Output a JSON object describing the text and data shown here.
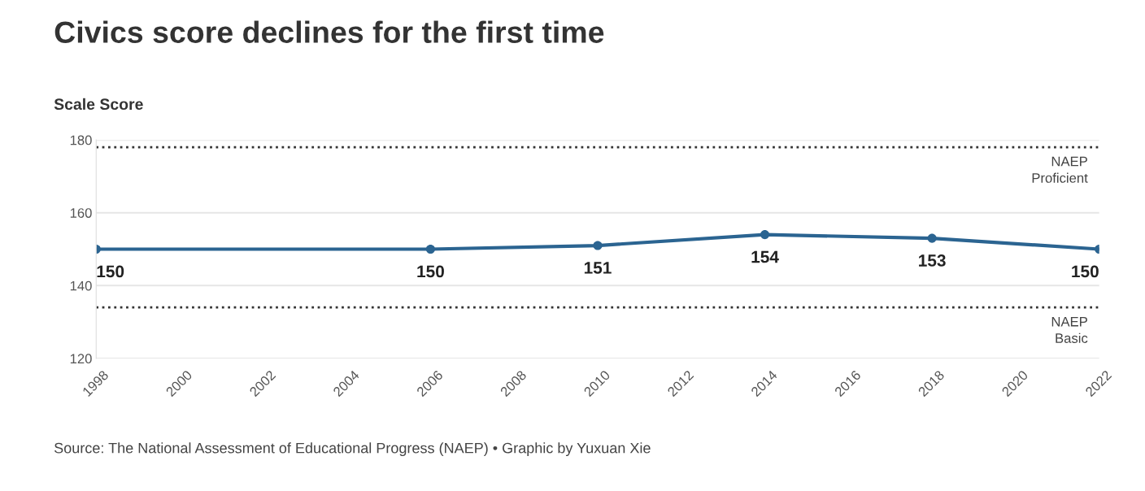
{
  "chart_data": {
    "type": "line",
    "title": "Civics score declines for the first time",
    "ylabel": "Scale Score",
    "x": [
      1998,
      2006,
      2010,
      2014,
      2018,
      2022
    ],
    "series": [
      {
        "color": "#2b6491",
        "values": [
          150,
          150,
          151,
          154,
          153,
          150
        ]
      }
    ],
    "xlim": [
      1998,
      2022
    ],
    "xticks": [
      1998,
      2000,
      2002,
      2004,
      2006,
      2008,
      2010,
      2012,
      2014,
      2016,
      2018,
      2020,
      2022
    ],
    "ylim": [
      120,
      180
    ],
    "yticks": [
      120,
      140,
      160,
      180
    ],
    "grid": "y",
    "marker": "circle",
    "line_style": "solid",
    "data_labels": true,
    "ref_lines": [
      {
        "axis": "y",
        "value": 178,
        "label": "NAEP\nProficient",
        "color": "#333333",
        "line_style": "dotted"
      },
      {
        "axis": "y",
        "value": 134,
        "label": "NAEP\nBasic",
        "color": "#333333",
        "line_style": "dotted"
      }
    ],
    "annotations": [
      "Source: The National Assessment of Educational Progress (NAEP) • Graphic by Yuxuan Xie"
    ]
  }
}
